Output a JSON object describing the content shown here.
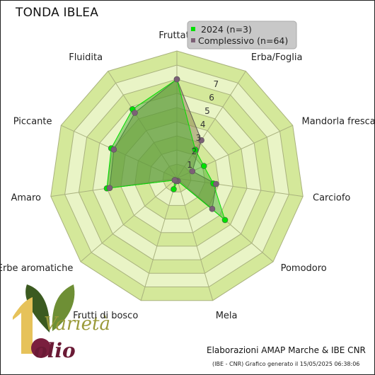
{
  "title": "TONDA IBLEA",
  "credit": "Elaborazioni AMAP Marche & IBE CNR",
  "footer": "(IBE - CNR) Grafico generato il 15/05/2025 06:38:06",
  "logo": {
    "line1": "Varietà",
    "line2": "olio"
  },
  "colors": {
    "ring_dark": "#d4e89a",
    "ring_light": "#e9f4c6",
    "grid": "#a9b27e",
    "series_2024": "#00e000",
    "series_overall": "#7c6076",
    "fill_overall": "rgba(140,125,80,0.5)",
    "fill_2024": "rgba(60,170,40,0.45)"
  },
  "chart_data": {
    "type": "radar",
    "axes": [
      "Fruttato",
      "Erba/Foglia",
      "Mandorla fresca",
      "Carciofo",
      "Pomodoro",
      "Mela",
      "Frutti di bosco",
      "Erbe aromatiche",
      "Amaro",
      "Piccante",
      "Fluidita"
    ],
    "rmax": 9,
    "ticks": [
      1,
      2,
      3,
      4,
      5,
      6,
      7
    ],
    "grid": true,
    "legend_position": "top-right",
    "series": [
      {
        "name": "2024 (n=3)",
        "values": [
          7.0,
          2.4,
          2.1,
          2.6,
          4.5,
          0.2,
          0.8,
          0.2,
          5.0,
          5.1,
          5.8
        ]
      },
      {
        "name": "Complessivo (n=64)",
        "values": [
          7.0,
          3.2,
          1.2,
          2.8,
          3.3,
          0.2,
          0.2,
          0.2,
          4.8,
          4.9,
          5.5
        ]
      }
    ]
  }
}
